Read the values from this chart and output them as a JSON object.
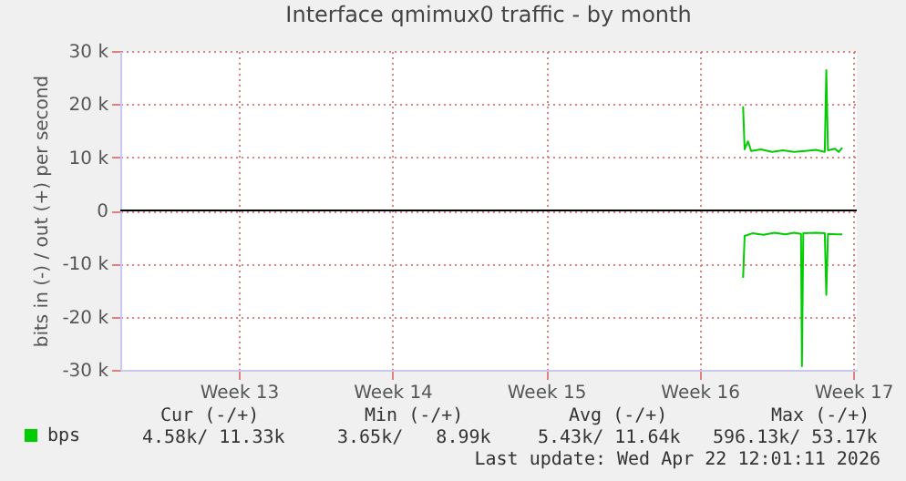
{
  "chart_data": {
    "type": "line",
    "title": "Interface qmimux0 traffic - by month",
    "ylabel": "bits in (-) / out (+) per second",
    "xlim": [
      "2026-03-20T14:24",
      "2026-04-23T03:50"
    ],
    "xticks": [
      {
        "value": "2026-03-26",
        "label": "Week 13"
      },
      {
        "value": "2026-04-02",
        "label": "Week 14"
      },
      {
        "value": "2026-04-09",
        "label": "Week 15"
      },
      {
        "value": "2026-04-16",
        "label": "Week 16"
      },
      {
        "value": "2026-04-23",
        "label": "Week 17"
      }
    ],
    "ylim": [
      -30000,
      30000
    ],
    "yticks": [
      {
        "value": -30000,
        "label": "-30 k"
      },
      {
        "value": -20000,
        "label": "-20 k"
      },
      {
        "value": -10000,
        "label": "-10 k"
      },
      0,
      {
        "value": 10000,
        "label": "10 k"
      },
      {
        "value": 20000,
        "label": "20 k"
      },
      {
        "value": 30000,
        "label": "30 k"
      }
    ],
    "grid": true,
    "legend": "bottom left",
    "series": [
      {
        "name": "bps",
        "color": "#00cc00",
        "x": [
          "2026-04-17T23:30",
          "2026-04-18T01:10",
          "2026-04-18T04:50",
          "2026-04-18T08:20",
          "2026-04-18T19:10",
          "2026-04-19T07:10",
          "2026-04-19T19:10",
          "2026-04-20T07:10",
          "2026-04-20T19:10",
          "2026-04-21T07:10",
          "2026-04-21T16:50",
          "2026-04-21T18:30",
          "2026-04-21T20:20",
          "2026-04-22T04:00",
          "2026-04-22T08:00",
          "2026-04-22T12:00"
        ],
        "values": [
          19600,
          11500,
          13000,
          11200,
          11500,
          11000,
          11300,
          11000,
          11200,
          11400,
          11000,
          26400,
          11300,
          11600,
          11000,
          11800
        ]
      },
      {
        "color": "#00cc00",
        "x": [
          "2026-04-17T23:30",
          "2026-04-18T01:10",
          "2026-04-18T09:40",
          "2026-04-18T21:40",
          "2026-04-19T09:40",
          "2026-04-19T21:40",
          "2026-04-20T07:10",
          "2026-04-20T14:50",
          "2026-04-20T15:50",
          "2026-04-20T17:20",
          "2026-04-21T07:10",
          "2026-04-21T16:50",
          "2026-04-21T18:30",
          "2026-04-21T20:20",
          "2026-04-22T06:00",
          "2026-04-22T12:00"
        ],
        "values": [
          -12700,
          -4800,
          -4300,
          -4600,
          -4200,
          -4500,
          -4200,
          -4400,
          -29300,
          -4300,
          -4200,
          -4300,
          -15900,
          -4400,
          -4500,
          -4500
        ]
      }
    ],
    "ref_lines": [
      {
        "axis": "y",
        "value": 0,
        "color": "#000000"
      }
    ],
    "annotations": [
      "Cur (-/+)",
      "Min (-/+)",
      "Avg (-/+)",
      "Max (-/+)",
      "4.58k/ 11.33k",
      "3.65k/   8.99k",
      "5.43k/ 11.64k",
      "596.13k/ 53.17k",
      "Last update: Wed Apr 22 12:01:11 2026"
    ]
  }
}
